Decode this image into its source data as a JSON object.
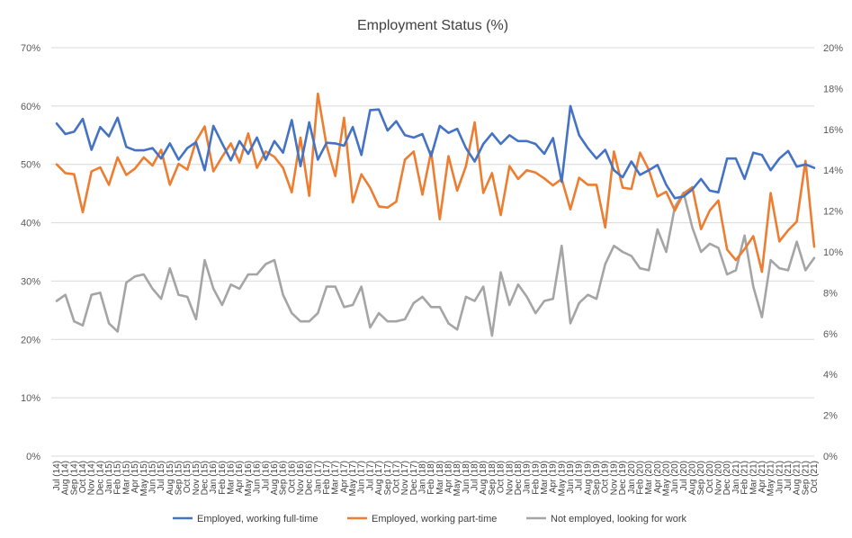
{
  "chart_data": {
    "type": "line",
    "title": "Employment Status (%)",
    "left_axis": {
      "ylim": [
        0,
        70
      ],
      "ticks": [
        "0%",
        "10%",
        "20%",
        "30%",
        "40%",
        "50%",
        "60%",
        "70%"
      ],
      "tick_values": [
        0,
        10,
        20,
        30,
        40,
        50,
        60,
        70
      ]
    },
    "right_axis": {
      "ylim": [
        0,
        20
      ],
      "ticks": [
        "0%",
        "2%",
        "4%",
        "6%",
        "8%",
        "10%",
        "12%",
        "14%",
        "16%",
        "18%",
        "20%"
      ],
      "tick_values": [
        0,
        2,
        4,
        6,
        8,
        10,
        12,
        14,
        16,
        18,
        20
      ]
    },
    "grid": true,
    "legend_position": "bottom",
    "categories": [
      "Jul (14)",
      "Aug (14)",
      "Sep (14)",
      "Oct (14)",
      "Nov (14)",
      "Dec (14)",
      "Jan (15)",
      "Feb (15)",
      "Mar (15)",
      "Apr (15)",
      "May (15)",
      "Jun (15)",
      "Jul (15)",
      "Aug (15)",
      "Sep (15)",
      "Oct (15)",
      "Nov (15)",
      "Dec (15)",
      "Jan (16)",
      "Feb (16)",
      "Mar (16)",
      "Apr (16)",
      "May (16)",
      "Jun (16)",
      "Jul (16)",
      "Aug (16)",
      "Sep (16)",
      "Oct (16)",
      "Nov (16)",
      "Dec (16)",
      "Jan (17)",
      "Feb (17)",
      "Mar (17)",
      "Apr (17)",
      "May (17)",
      "Jun (17)",
      "Jul (17)",
      "Aug (17)",
      "Sep (17)",
      "Oct (17)",
      "Nov (17)",
      "Dec (17)",
      "Jan (18)",
      "Feb (18)",
      "Mar (18)",
      "Apr (18)",
      "May (18)",
      "Jun (18)",
      "Jul (18)",
      "Aug (18)",
      "Sep (18)",
      "Oct (18)",
      "Nov (18)",
      "Dec (18)",
      "Jan (19)",
      "Feb (19)",
      "Mar (19)",
      "Apr (19)",
      "May (19)",
      "Jun (19)",
      "Jul (19)",
      "Aug (19)",
      "Sep (19)",
      "Oct (19)",
      "Nov (19)",
      "Dec (19)",
      "Jan (20)",
      "Feb (20)",
      "Mar (20)",
      "Apr (20)",
      "May (20)",
      "Jun (20)",
      "Jul (20)",
      "Aug (20)",
      "Sep (20)",
      "Oct (20)",
      "Nov (20)",
      "Dec (20)",
      "Jan (21)",
      "Feb (21)",
      "Mar (21)",
      "Apr (21)",
      "May (21)",
      "Jun (21)",
      "Jul (21)",
      "Aug (21)",
      "Sep (21)",
      "Oct (21)"
    ],
    "series": [
      {
        "name": "Employed, working full-time",
        "axis": "left",
        "color": "#4472C4",
        "values": [
          57.0,
          55.2,
          55.6,
          57.8,
          52.5,
          56.4,
          54.8,
          58.0,
          53.0,
          52.4,
          52.4,
          52.8,
          51.0,
          53.6,
          50.8,
          52.8,
          53.8,
          49.0,
          56.6,
          53.6,
          50.7,
          54.0,
          51.8,
          54.6,
          50.8,
          54.0,
          52.0,
          57.6,
          49.7,
          57.2,
          50.8,
          53.7,
          53.6,
          53.2,
          56.4,
          51.6,
          59.3,
          59.4,
          55.8,
          57.4,
          55.0,
          54.6,
          55.2,
          51.4,
          56.6,
          55.4,
          56.1,
          52.8,
          50.5,
          53.5,
          55.3,
          53.5,
          55.0,
          54.0,
          54.0,
          53.5,
          51.8,
          54.5,
          47.0,
          60.0,
          55.0,
          52.8,
          51.0,
          52.5,
          49.0,
          47.8,
          50.5,
          48.2,
          49.0,
          49.9,
          46.5,
          44.2,
          44.5,
          45.7,
          47.5,
          45.5,
          45.2,
          51.0,
          51.0,
          47.5,
          52.0,
          51.6,
          49.0,
          51.0,
          52.3,
          49.6,
          50.0,
          49.4
        ]
      },
      {
        "name": "Employed, working part-time",
        "axis": "left",
        "color": "#ED7D31",
        "values": [
          50.0,
          48.5,
          48.3,
          41.8,
          48.8,
          49.5,
          46.5,
          51.2,
          48.2,
          49.3,
          51.2,
          49.8,
          52.5,
          46.5,
          50.1,
          49.1,
          54.0,
          56.5,
          48.8,
          51.3,
          53.6,
          50.3,
          55.3,
          49.4,
          52.2,
          51.3,
          49.4,
          45.2,
          54.6,
          44.6,
          62.1,
          53.2,
          48.0,
          58.0,
          43.5,
          48.3,
          46.0,
          42.8,
          42.6,
          43.6,
          50.8,
          52.2,
          44.8,
          52.2,
          40.6,
          51.4,
          45.5,
          49.7,
          57.2,
          45.1,
          48.5,
          41.3,
          49.7,
          47.5,
          49.0,
          48.6,
          47.6,
          46.4,
          47.5,
          42.3,
          47.7,
          46.5,
          46.5,
          39.2,
          52.2,
          46.0,
          45.8,
          52.0,
          49.1,
          44.5,
          45.3,
          42.1,
          45.0,
          46.1,
          38.9,
          42.1,
          43.8,
          35.4,
          33.6,
          35.5,
          37.7,
          31.6,
          45.1,
          36.8,
          38.7,
          40.2,
          50.6,
          35.9
        ]
      },
      {
        "name": "Not employed, looking for work",
        "axis": "right",
        "color": "#A5A5A5",
        "values": [
          7.6,
          7.9,
          6.6,
          6.4,
          7.9,
          8.0,
          6.5,
          6.1,
          8.5,
          8.8,
          8.9,
          8.2,
          7.7,
          9.2,
          7.9,
          7.8,
          6.7,
          9.6,
          8.2,
          7.4,
          8.4,
          8.2,
          8.9,
          8.9,
          9.4,
          9.6,
          7.9,
          7.0,
          6.6,
          6.6,
          7.0,
          8.3,
          8.3,
          7.3,
          7.4,
          8.3,
          6.3,
          7.0,
          6.6,
          6.6,
          6.7,
          7.5,
          7.8,
          7.3,
          7.3,
          6.5,
          6.2,
          7.8,
          7.6,
          8.3,
          5.9,
          9.0,
          7.4,
          8.4,
          7.8,
          7.0,
          7.6,
          7.7,
          10.3,
          6.5,
          7.5,
          7.9,
          7.7,
          9.4,
          10.3,
          10.0,
          9.8,
          9.2,
          9.1,
          11.1,
          10.0,
          12.2,
          12.9,
          11.2,
          10.0,
          10.4,
          10.2,
          8.9,
          9.1,
          10.8,
          8.3,
          6.8,
          9.6,
          9.2,
          9.1,
          10.5,
          9.1,
          9.7
        ]
      }
    ]
  }
}
